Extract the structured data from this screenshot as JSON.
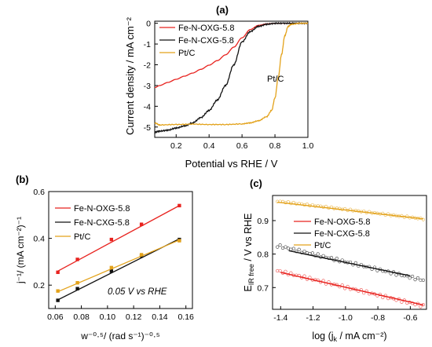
{
  "chart_data": [
    {
      "panel_label": "(a)",
      "type": "line",
      "xlabel": "Potential vs RHE / V",
      "ylabel": "Current density / mA cm⁻²",
      "xlim": [
        0.07,
        1.0
      ],
      "ylim": [
        -5.5,
        0.1
      ],
      "xticks": [
        "0.2",
        "0.4",
        "0.6",
        "0.8",
        "1.0"
      ],
      "yticks": [
        "0",
        "-1",
        "-2",
        "-3",
        "-4",
        "-5"
      ],
      "xtick_values": [
        0.2,
        0.4,
        0.6,
        0.8,
        1.0
      ],
      "ytick_values": [
        0,
        -1,
        -2,
        -3,
        -4,
        -5
      ],
      "legend_position": "top-left",
      "annotations": [
        "Pt/C"
      ],
      "series": [
        {
          "name": "Fe-N-OXG-5.8",
          "color": "#e8231f",
          "x": [
            0.07,
            0.1,
            0.15,
            0.2,
            0.25,
            0.3,
            0.35,
            0.4,
            0.45,
            0.5,
            0.55,
            0.6,
            0.65,
            0.7,
            0.75,
            0.8,
            0.85,
            0.9,
            0.95,
            1.0
          ],
          "y": [
            -3.1,
            -3.0,
            -2.85,
            -2.7,
            -2.55,
            -2.4,
            -2.22,
            -2.02,
            -1.8,
            -1.52,
            -1.15,
            -0.7,
            -0.3,
            -0.1,
            -0.03,
            0.0,
            0.0,
            0.0,
            0.0,
            0.0
          ]
        },
        {
          "name": "Fe-N-CXG-5.8",
          "color": "#111111",
          "x": [
            0.07,
            0.1,
            0.15,
            0.2,
            0.25,
            0.3,
            0.35,
            0.4,
            0.45,
            0.5,
            0.55,
            0.6,
            0.65,
            0.7,
            0.75,
            0.8,
            0.85,
            0.9,
            0.95,
            1.0
          ],
          "y": [
            -5.25,
            -5.2,
            -5.15,
            -5.05,
            -4.95,
            -4.8,
            -4.55,
            -4.2,
            -3.7,
            -3.0,
            -2.0,
            -0.9,
            -0.4,
            -0.15,
            -0.05,
            0.0,
            0.0,
            0.0,
            0.0,
            0.0
          ]
        },
        {
          "name": "Pt/C",
          "color": "#e3a21a",
          "x": [
            0.07,
            0.1,
            0.2,
            0.3,
            0.4,
            0.5,
            0.6,
            0.65,
            0.7,
            0.75,
            0.78,
            0.8,
            0.82,
            0.84,
            0.86,
            0.88,
            0.9,
            0.95,
            1.0
          ],
          "y": [
            -4.8,
            -4.9,
            -4.88,
            -4.86,
            -4.88,
            -4.88,
            -4.85,
            -4.8,
            -4.7,
            -4.5,
            -4.2,
            -3.6,
            -2.6,
            -1.5,
            -0.6,
            -0.15,
            -0.05,
            0.0,
            0.0
          ]
        }
      ]
    },
    {
      "panel_label": "(b)",
      "type": "scatter",
      "xlabel": "w⁻⁰·⁵/ (rad s⁻¹)⁻⁰·⁵",
      "ylabel": "j⁻¹/ (mA cm⁻²)⁻¹",
      "xlim": [
        0.055,
        0.165
      ],
      "ylim": [
        0.1,
        0.6
      ],
      "xticks": [
        "0.06",
        "0.08",
        "0.10",
        "0.12",
        "0.14",
        "0.16"
      ],
      "yticks": [
        "0.2",
        "0.4",
        "0.6"
      ],
      "xtick_values": [
        0.06,
        0.08,
        0.1,
        0.12,
        0.14,
        0.16
      ],
      "ytick_values": [
        0.2,
        0.4,
        0.6
      ],
      "legend_position": "top-left",
      "annotations": [
        "0.05 V vs RHE"
      ],
      "series": [
        {
          "name": "Fe-N-OXG-5.8",
          "color": "#e8231f",
          "x": [
            0.062,
            0.077,
            0.103,
            0.126,
            0.155
          ],
          "y": [
            0.255,
            0.31,
            0.395,
            0.46,
            0.54
          ],
          "fit": [
            [
              0.062,
              0.26
            ],
            [
              0.155,
              0.54
            ]
          ]
        },
        {
          "name": "Fe-N-CXG-5.8",
          "color": "#111111",
          "x": [
            0.062,
            0.077,
            0.103,
            0.126,
            0.155
          ],
          "y": [
            0.135,
            0.185,
            0.26,
            0.325,
            0.395
          ],
          "fit": [
            [
              0.062,
              0.137
            ],
            [
              0.155,
              0.398
            ]
          ]
        },
        {
          "name": "Pt/C",
          "color": "#e3a21a",
          "x": [
            0.062,
            0.077,
            0.103,
            0.126,
            0.155
          ],
          "y": [
            0.175,
            0.21,
            0.275,
            0.33,
            0.39
          ],
          "fit": [
            [
              0.062,
              0.172
            ],
            [
              0.155,
              0.393
            ]
          ]
        }
      ]
    },
    {
      "panel_label": "(c)",
      "type": "scatter",
      "xlabel": "log (j",
      "xlabel_sub": "k",
      "xlabel_tail": " / mA cm⁻²)",
      "ylabel": "E",
      "ylabel_sub": "IR free",
      "ylabel_tail": " / V vs RHE",
      "xlim": [
        -1.45,
        -0.5
      ],
      "ylim": [
        0.635,
        0.975
      ],
      "xticks": [
        "-1.4",
        "-1.2",
        "-1.0",
        "-0.8",
        "-0.6"
      ],
      "yticks": [
        "0.7",
        "0.8",
        "0.9"
      ],
      "xtick_values": [
        -1.4,
        -1.2,
        -1.0,
        -0.8,
        -0.6
      ],
      "ytick_values": [
        0.7,
        0.8,
        0.9
      ],
      "legend_position": "top-center",
      "series": [
        {
          "name": "Fe-N-OXG-5.8",
          "color": "#e8231f",
          "x_range": [
            -1.42,
            -0.52
          ],
          "y_start": 0.75,
          "y_end": 0.645,
          "noise": 0.004,
          "fit": [
            [
              -1.4,
              0.745
            ],
            [
              -0.52,
              0.648
            ]
          ]
        },
        {
          "name": "Fe-N-CXG-5.8",
          "color": "#111111",
          "x_range": [
            -1.42,
            -0.52
          ],
          "y_start": 0.825,
          "y_end": 0.722,
          "noise": 0.004,
          "fit": [
            [
              -1.35,
              0.81
            ],
            [
              -0.6,
              0.735
            ]
          ]
        },
        {
          "name": "Pt/C",
          "color": "#e3a21a",
          "x_range": [
            -1.42,
            -0.52
          ],
          "y_start": 0.958,
          "y_end": 0.905,
          "noise": 0.002,
          "fit": [
            [
              -1.42,
              0.955
            ],
            [
              -0.52,
              0.905
            ]
          ]
        }
      ]
    }
  ]
}
